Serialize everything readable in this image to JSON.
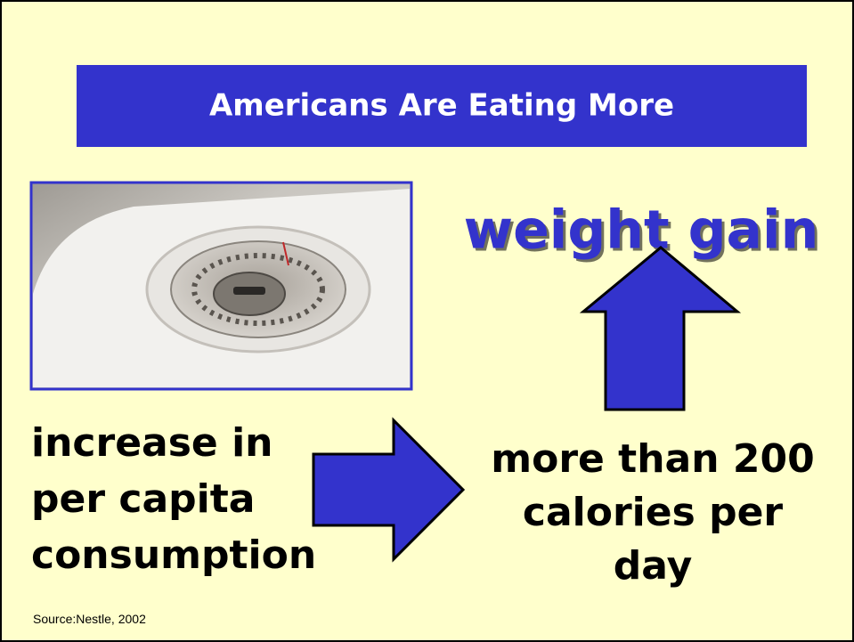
{
  "slide": {
    "title": "Americans Are Eating More",
    "headline": "weight gain",
    "cause_lines": [
      "increase in",
      "per capita",
      "consumption"
    ],
    "effect_lines": [
      "more than 200",
      "calories per",
      "day"
    ],
    "source": "Source:Nestle, 2002"
  }
}
